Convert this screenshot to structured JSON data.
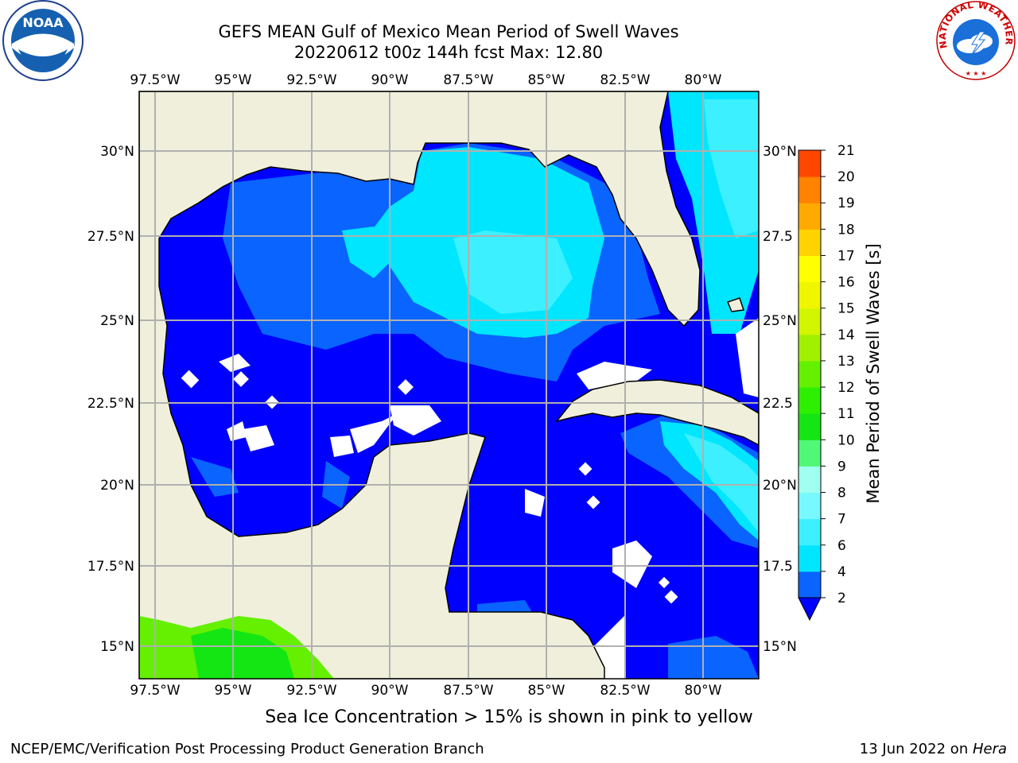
{
  "title_line1": "GEFS MEAN Gulf of Mexico Mean Period of Swell Waves",
  "title_line2": "20220612 t00z 144h fcst   Max: 12.80",
  "caption": "Sea Ice Concentration > 15% is shown in pink to yellow",
  "credit": "NCEP/EMC/Verification Post Processing Product Generation Branch",
  "date_text": "13 Jun 2022 on ",
  "date_machine": "Hera",
  "logos": {
    "left": "NOAA",
    "right": "NATIONAL WEATHER SERVICE"
  },
  "map": {
    "lon_ticks": [
      "97.5°W",
      "95°W",
      "92.5°W",
      "90°W",
      "87.5°W",
      "85°W",
      "82.5°W",
      "80°W"
    ],
    "lat_ticks_left": [
      "30°N",
      "27.5°N",
      "25°N",
      "22.5°N",
      "20°N",
      "17.5°N",
      "15°N"
    ],
    "lat_ticks_right": [
      "30°N",
      "27.5",
      "25°N",
      "22.5",
      "20°N",
      "17.5",
      "15°N"
    ],
    "land_color": "#efefdb",
    "grid_color": "#b0b0b0"
  },
  "colorbar": {
    "label": "Mean Period of Swell Waves [s]",
    "ticks": [
      "2",
      "4",
      "6",
      "7",
      "8",
      "9",
      "10",
      "11",
      "12",
      "13",
      "14",
      "15",
      "16",
      "17",
      "18",
      "19",
      "20",
      "21"
    ],
    "colors": [
      "#0a64ff",
      "#00e6ff",
      "#3cf0ff",
      "#78f8ff",
      "#a0fff0",
      "#50f878",
      "#14e614",
      "#2cf000",
      "#64f000",
      "#a0f000",
      "#d2f500",
      "#f0f500",
      "#ffff00",
      "#ffd200",
      "#ffaa00",
      "#ff8200",
      "#ff4600",
      "#ff1e00"
    ],
    "under_color": "#0000ff"
  }
}
